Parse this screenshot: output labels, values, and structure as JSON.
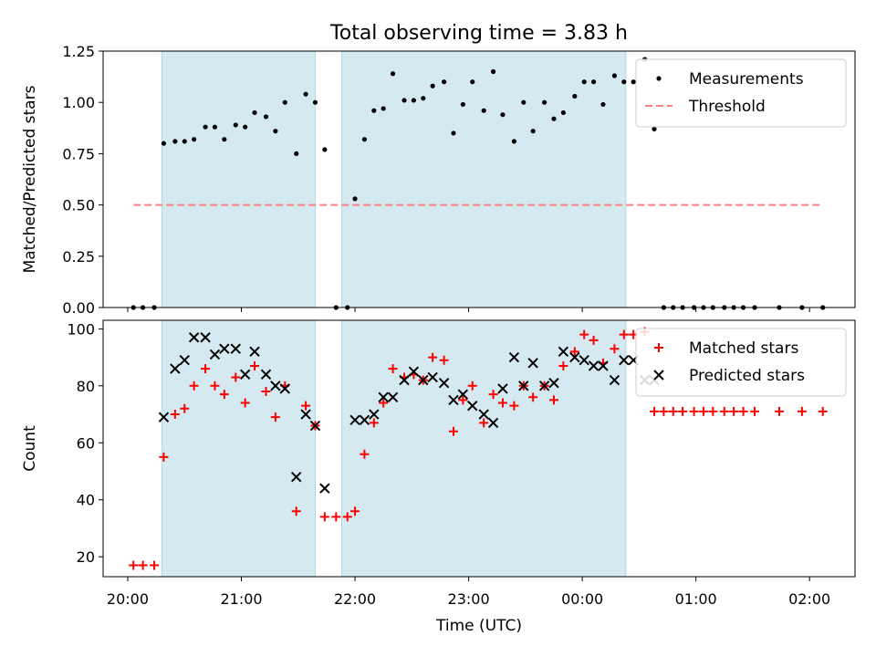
{
  "figure": {
    "title": "Total observing time = 3.83 h",
    "xlabel": "Time (UTC)",
    "x_ticks": [
      "20:00",
      "21:00",
      "22:00",
      "23:00",
      "00:00",
      "01:00",
      "02:00"
    ]
  },
  "colors": {
    "shade": "#d4eaf0",
    "shade_edge": "#add8e6",
    "measurement": "#000000",
    "threshold": "#ff7f7f",
    "matched": "#ff0000",
    "predicted": "#000000"
  },
  "chart_data": [
    {
      "type": "scatter",
      "ylabel": "Matched/Predicted stars",
      "ylim": [
        0,
        1.25
      ],
      "y_ticks": [
        "0.00",
        "0.25",
        "0.50",
        "0.75",
        "1.00",
        "1.25"
      ],
      "xlim": [
        "19:47",
        "02:24"
      ],
      "legend_position": "top-right",
      "shaded_intervals": [
        [
          "20:18",
          "21:39"
        ],
        [
          "21:53",
          "00:23"
        ]
      ],
      "threshold": {
        "name": "Threshold",
        "value": 0.5,
        "x_range": [
          "20:03",
          "02:07"
        ]
      },
      "series": [
        {
          "name": "Measurements",
          "marker": "dot",
          "points": [
            [
              "20:03",
              0.0
            ],
            [
              "20:08",
              0.0
            ],
            [
              "20:14",
              0.0
            ],
            [
              "20:19",
              0.8
            ],
            [
              "20:25",
              0.81
            ],
            [
              "20:30",
              0.81
            ],
            [
              "20:35",
              0.82
            ],
            [
              "20:41",
              0.88
            ],
            [
              "20:46",
              0.88
            ],
            [
              "20:51",
              0.82
            ],
            [
              "20:57",
              0.89
            ],
            [
              "21:02",
              0.88
            ],
            [
              "21:07",
              0.95
            ],
            [
              "21:13",
              0.93
            ],
            [
              "21:18",
              0.86
            ],
            [
              "21:23",
              1.0
            ],
            [
              "21:29",
              0.75
            ],
            [
              "21:34",
              1.04
            ],
            [
              "21:39",
              1.0
            ],
            [
              "21:44",
              0.77
            ],
            [
              "21:50",
              0.0
            ],
            [
              "21:56",
              0.0
            ],
            [
              "22:00",
              0.53
            ],
            [
              "22:05",
              0.82
            ],
            [
              "22:10",
              0.96
            ],
            [
              "22:15",
              0.97
            ],
            [
              "22:20",
              1.14
            ],
            [
              "22:26",
              1.01
            ],
            [
              "22:31",
              1.01
            ],
            [
              "22:36",
              1.02
            ],
            [
              "22:41",
              1.08
            ],
            [
              "22:47",
              1.1
            ],
            [
              "22:52",
              0.85
            ],
            [
              "22:57",
              0.99
            ],
            [
              "23:02",
              1.1
            ],
            [
              "23:08",
              0.96
            ],
            [
              "23:13",
              1.15
            ],
            [
              "23:18",
              0.94
            ],
            [
              "23:24",
              0.81
            ],
            [
              "23:29",
              1.0
            ],
            [
              "23:34",
              0.86
            ],
            [
              "23:40",
              1.0
            ],
            [
              "23:45",
              0.92
            ],
            [
              "23:50",
              0.95
            ],
            [
              "23:56",
              1.03
            ],
            [
              "00:01",
              1.1
            ],
            [
              "00:06",
              1.1
            ],
            [
              "00:11",
              0.99
            ],
            [
              "00:17",
              1.13
            ],
            [
              "00:22",
              1.1
            ],
            [
              "00:27",
              1.1
            ],
            [
              "00:33",
              1.21
            ],
            [
              "00:38",
              0.87
            ],
            [
              "00:43",
              0.0
            ],
            [
              "00:48",
              0.0
            ],
            [
              "00:53",
              0.0
            ],
            [
              "00:59",
              0.0
            ],
            [
              "01:04",
              0.0
            ],
            [
              "01:09",
              0.0
            ],
            [
              "01:15",
              0.0
            ],
            [
              "01:20",
              0.0
            ],
            [
              "01:25",
              0.0
            ],
            [
              "01:31",
              0.0
            ],
            [
              "01:44",
              0.0
            ],
            [
              "01:56",
              0.0
            ],
            [
              "02:07",
              0.0
            ]
          ]
        }
      ]
    },
    {
      "type": "scatter",
      "ylabel": "Count",
      "ylim": [
        13,
        103
      ],
      "y_ticks": [
        "20",
        "40",
        "60",
        "80",
        "100"
      ],
      "xlim": [
        "19:47",
        "02:24"
      ],
      "legend_position": "top-right",
      "shaded_intervals": [
        [
          "20:18",
          "21:39"
        ],
        [
          "21:53",
          "00:23"
        ]
      ],
      "series": [
        {
          "name": "Matched stars",
          "marker": "plus",
          "points": [
            [
              "20:03",
              17
            ],
            [
              "20:08",
              17
            ],
            [
              "20:14",
              17
            ],
            [
              "20:19",
              55
            ],
            [
              "20:25",
              70
            ],
            [
              "20:30",
              72
            ],
            [
              "20:35",
              80
            ],
            [
              "20:41",
              86
            ],
            [
              "20:46",
              80
            ],
            [
              "20:51",
              77
            ],
            [
              "20:57",
              83
            ],
            [
              "21:02",
              74
            ],
            [
              "21:07",
              87
            ],
            [
              "21:13",
              78
            ],
            [
              "21:18",
              69
            ],
            [
              "21:23",
              80
            ],
            [
              "21:29",
              36
            ],
            [
              "21:34",
              73
            ],
            [
              "21:39",
              66
            ],
            [
              "21:44",
              34
            ],
            [
              "21:50",
              34
            ],
            [
              "21:56",
              34
            ],
            [
              "22:00",
              36
            ],
            [
              "22:05",
              56
            ],
            [
              "22:10",
              67
            ],
            [
              "22:15",
              74
            ],
            [
              "22:20",
              86
            ],
            [
              "22:26",
              83
            ],
            [
              "22:31",
              84
            ],
            [
              "22:36",
              82
            ],
            [
              "22:41",
              90
            ],
            [
              "22:47",
              89
            ],
            [
              "22:52",
              64
            ],
            [
              "22:57",
              75
            ],
            [
              "23:02",
              80
            ],
            [
              "23:08",
              67
            ],
            [
              "23:13",
              77
            ],
            [
              "23:18",
              74
            ],
            [
              "23:24",
              73
            ],
            [
              "23:29",
              80
            ],
            [
              "23:34",
              76
            ],
            [
              "23:40",
              80
            ],
            [
              "23:45",
              75
            ],
            [
              "23:50",
              87
            ],
            [
              "23:56",
              92
            ],
            [
              "00:01",
              98
            ],
            [
              "00:06",
              96
            ],
            [
              "00:11",
              88
            ],
            [
              "00:17",
              93
            ],
            [
              "00:22",
              98
            ],
            [
              "00:27",
              98
            ],
            [
              "00:33",
              99
            ],
            [
              "00:38",
              71
            ],
            [
              "00:43",
              71
            ],
            [
              "00:48",
              71
            ],
            [
              "00:53",
              71
            ],
            [
              "00:59",
              71
            ],
            [
              "01:04",
              71
            ],
            [
              "01:09",
              71
            ],
            [
              "01:15",
              71
            ],
            [
              "01:20",
              71
            ],
            [
              "01:25",
              71
            ],
            [
              "01:31",
              71
            ],
            [
              "01:44",
              71
            ],
            [
              "01:56",
              71
            ],
            [
              "02:07",
              71
            ]
          ]
        },
        {
          "name": "Predicted stars",
          "marker": "x",
          "points": [
            [
              "20:19",
              69
            ],
            [
              "20:25",
              86
            ],
            [
              "20:30",
              89
            ],
            [
              "20:35",
              97
            ],
            [
              "20:41",
              97
            ],
            [
              "20:46",
              91
            ],
            [
              "20:51",
              93
            ],
            [
              "20:57",
              93
            ],
            [
              "21:02",
              84
            ],
            [
              "21:07",
              92
            ],
            [
              "21:13",
              84
            ],
            [
              "21:18",
              80
            ],
            [
              "21:23",
              79
            ],
            [
              "21:29",
              48
            ],
            [
              "21:34",
              70
            ],
            [
              "21:39",
              66
            ],
            [
              "21:44",
              44
            ],
            [
              "22:00",
              68
            ],
            [
              "22:05",
              68
            ],
            [
              "22:10",
              70
            ],
            [
              "22:15",
              76
            ],
            [
              "22:20",
              76
            ],
            [
              "22:26",
              82
            ],
            [
              "22:31",
              85
            ],
            [
              "22:36",
              82
            ],
            [
              "22:41",
              83
            ],
            [
              "22:47",
              81
            ],
            [
              "22:52",
              75
            ],
            [
              "22:57",
              77
            ],
            [
              "23:02",
              73
            ],
            [
              "23:08",
              70
            ],
            [
              "23:13",
              67
            ],
            [
              "23:18",
              79
            ],
            [
              "23:24",
              90
            ],
            [
              "23:29",
              80
            ],
            [
              "23:34",
              88
            ],
            [
              "23:40",
              80
            ],
            [
              "23:45",
              81
            ],
            [
              "23:50",
              92
            ],
            [
              "23:56",
              90
            ],
            [
              "00:01",
              89
            ],
            [
              "00:06",
              87
            ],
            [
              "00:11",
              87
            ],
            [
              "00:17",
              82
            ],
            [
              "00:22",
              89
            ],
            [
              "00:27",
              89
            ],
            [
              "00:33",
              82
            ],
            [
              "00:38",
              82
            ]
          ]
        }
      ]
    }
  ]
}
